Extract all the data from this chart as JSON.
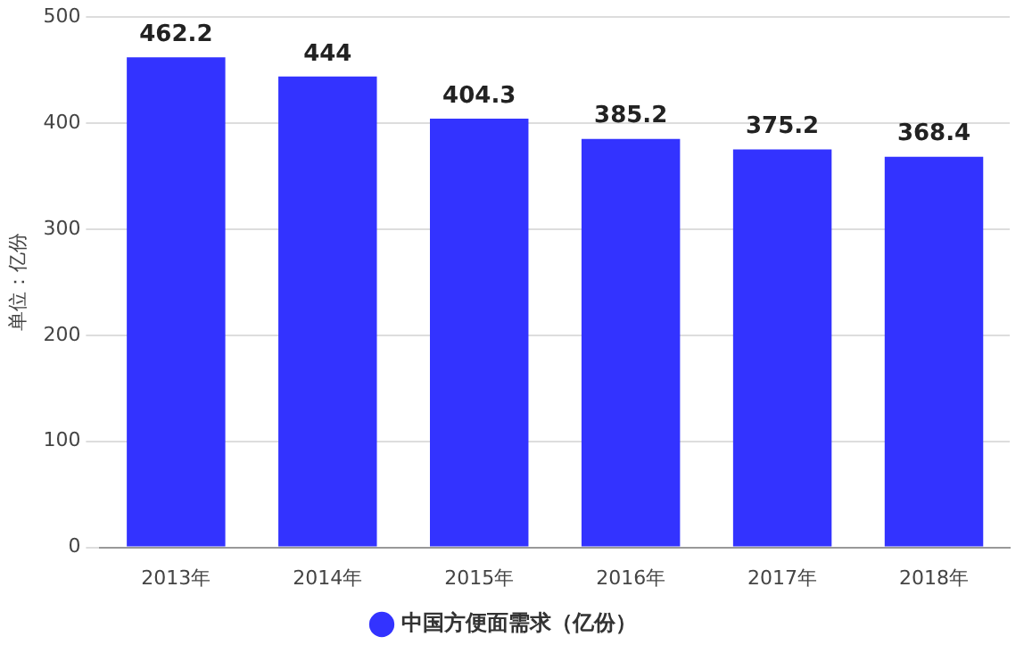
{
  "chart_data": {
    "type": "bar",
    "ylabel": "单位：亿份",
    "categories": [
      "2013年",
      "2014年",
      "2015年",
      "2016年",
      "2017年",
      "2018年"
    ],
    "series": [
      {
        "name": "中国方便面需求（亿份）",
        "color": "#3333ff",
        "values": [
          462.2,
          444,
          404.3,
          385.2,
          375.2,
          368.4
        ]
      }
    ],
    "ylim": [
      0,
      500
    ],
    "yticks": [
      0,
      100,
      200,
      300,
      400,
      500
    ],
    "grid": "y",
    "legend": "bottom",
    "data_labels": true
  }
}
